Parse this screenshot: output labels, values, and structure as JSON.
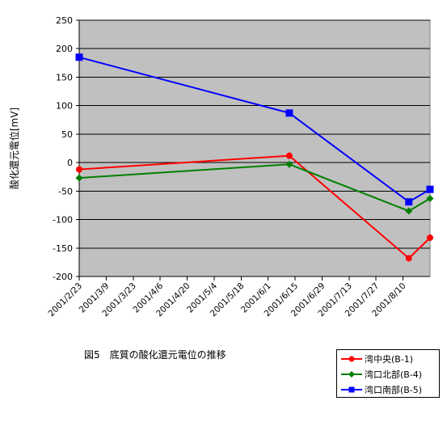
{
  "caption": "図5　底質の酸化還元電位の推移",
  "chart_data": {
    "type": "line",
    "title": "",
    "ylabel": "酸化還元電位[mV]",
    "xlabel": "",
    "ylim": [
      -200,
      250
    ],
    "ytick_step": 50,
    "yticks": [
      "250",
      "200",
      "150",
      "100",
      "50",
      "0",
      "-50",
      "-100",
      "-150",
      "-200"
    ],
    "x_categories": [
      "2001/2/23",
      "2001/3/9",
      "2001/3/23",
      "2001/4/6",
      "2001/4/20",
      "2001/5/4",
      "2001/5/18",
      "2001/6/1",
      "2001/6/15",
      "2001/6/29",
      "2001/7/13",
      "2001/7/27",
      "2001/8/10"
    ],
    "x_range": [
      "2001/2/23",
      "2001/8/24"
    ],
    "grid": true,
    "legend_position": "bottom-right",
    "plot_background": "#c0c0c0",
    "series": [
      {
        "name": "湾中央(B-1)",
        "color": "#ff0000",
        "marker": "circle",
        "points": [
          {
            "x": "2001/2/23",
            "y": -12
          },
          {
            "x": "2001/6/12",
            "y": 12
          },
          {
            "x": "2001/8/13",
            "y": -168
          },
          {
            "x": "2001/8/24",
            "y": -132
          }
        ]
      },
      {
        "name": "湾口北部(B-4)",
        "color": "#008000",
        "marker": "diamond",
        "points": [
          {
            "x": "2001/2/23",
            "y": -27
          },
          {
            "x": "2001/6/12",
            "y": -3
          },
          {
            "x": "2001/8/13",
            "y": -85
          },
          {
            "x": "2001/8/24",
            "y": -63
          }
        ]
      },
      {
        "name": "湾口南部(B-5)",
        "color": "#0000ff",
        "marker": "square",
        "points": [
          {
            "x": "2001/2/23",
            "y": 185
          },
          {
            "x": "2001/6/12",
            "y": 87
          },
          {
            "x": "2001/8/13",
            "y": -69
          },
          {
            "x": "2001/8/24",
            "y": -47
          }
        ]
      }
    ]
  }
}
